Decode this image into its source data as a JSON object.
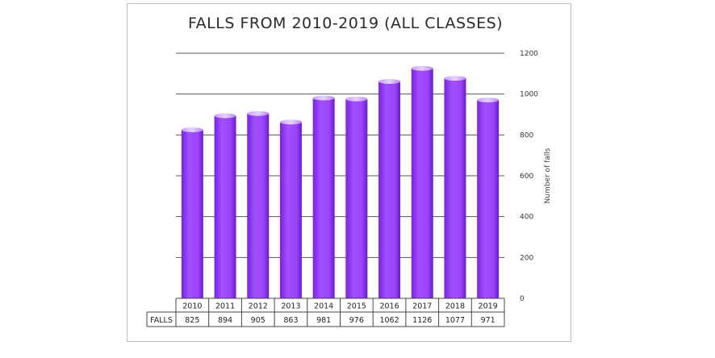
{
  "chart_data": {
    "type": "bar",
    "title": "FALLS FROM 2010-2019 (ALL CLASSES)",
    "ylabel": "Number of falls",
    "categories": [
      "2010",
      "2011",
      "2012",
      "2013",
      "2014",
      "2015",
      "2016",
      "2017",
      "2018",
      "2019"
    ],
    "series": [
      {
        "name": "FALLS",
        "values": [
          825,
          894,
          905,
          863,
          981,
          976,
          1062,
          1126,
          1077,
          971
        ]
      }
    ],
    "ylim": [
      0,
      1200
    ],
    "yticks": [
      0,
      200,
      400,
      600,
      800,
      1000,
      1200
    ],
    "y_axis_side": "right",
    "grid": true,
    "data_table": true,
    "bar_color": "#9933ff"
  }
}
